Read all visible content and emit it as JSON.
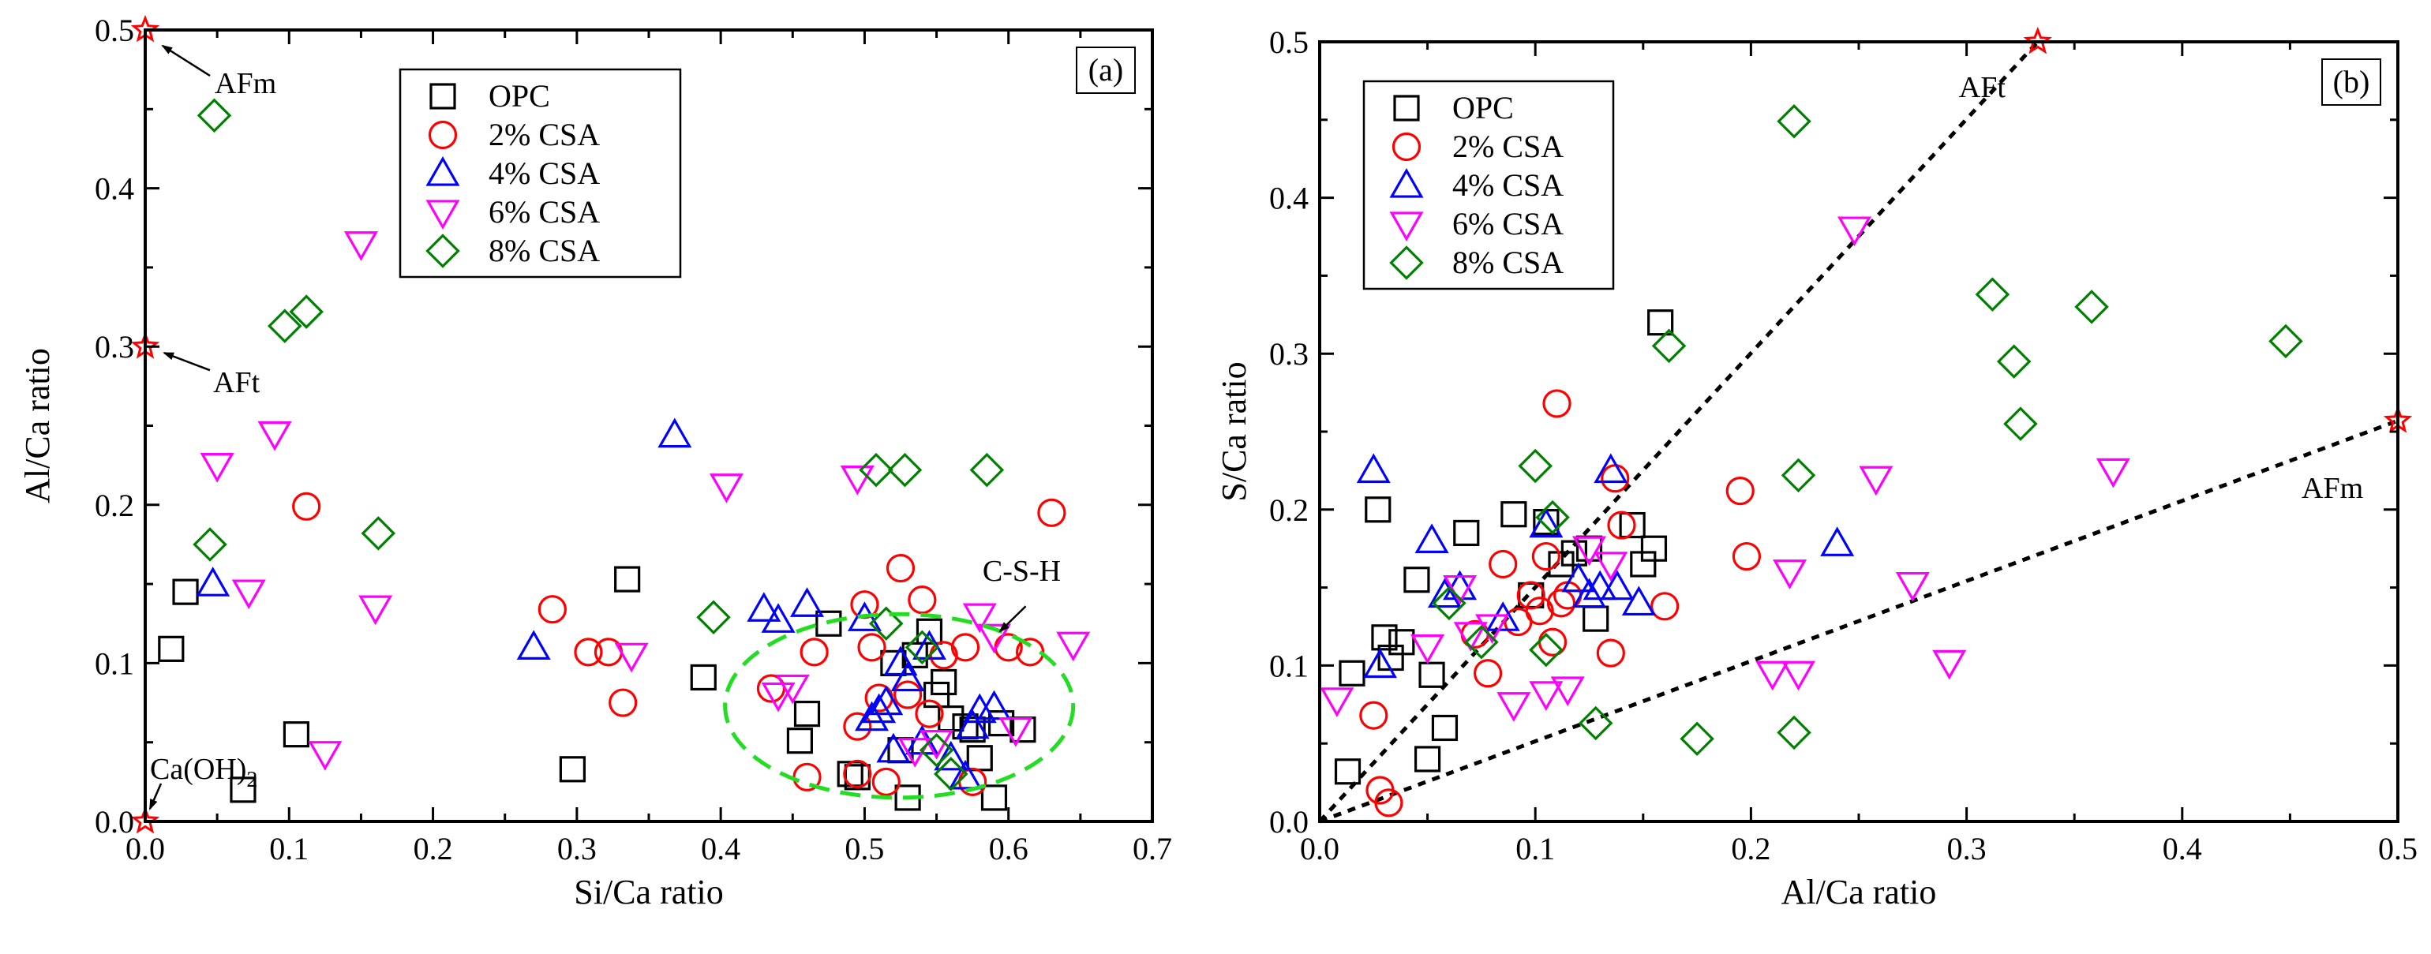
{
  "chart_data": [
    {
      "type": "scatter",
      "panel_label": "(a)",
      "xlabel": "Si/Ca ratio",
      "ylabel": "Al/Ca ratio",
      "xlim": [
        0,
        0.7
      ],
      "ylim": [
        0,
        0.5
      ],
      "xticks": [
        "0.0",
        "0.1",
        "0.2",
        "0.3",
        "0.4",
        "0.5",
        "0.6",
        "0.7"
      ],
      "yticks": [
        "0.0",
        "0.1",
        "0.2",
        "0.3",
        "0.4",
        "0.5"
      ],
      "legend_position": "top-center",
      "series": [
        {
          "name": "OPC",
          "marker": "square",
          "color": "#000000",
          "points": [
            [
              0.018,
              0.109
            ],
            [
              0.028,
              0.145
            ],
            [
              0.068,
              0.02
            ],
            [
              0.105,
              0.055
            ],
            [
              0.297,
              0.033
            ],
            [
              0.335,
              0.153
            ],
            [
              0.388,
              0.091
            ],
            [
              0.455,
              0.051
            ],
            [
              0.46,
              0.068
            ],
            [
              0.475,
              0.125
            ],
            [
              0.49,
              0.03
            ],
            [
              0.495,
              0.028
            ],
            [
              0.52,
              0.1
            ],
            [
              0.525,
              0.045
            ],
            [
              0.53,
              0.015
            ],
            [
              0.535,
              0.105
            ],
            [
              0.545,
              0.12
            ],
            [
              0.55,
              0.08
            ],
            [
              0.555,
              0.088
            ],
            [
              0.56,
              0.065
            ],
            [
              0.57,
              0.06
            ],
            [
              0.575,
              0.058
            ],
            [
              0.58,
              0.04
            ],
            [
              0.59,
              0.015
            ],
            [
              0.595,
              0.062
            ],
            [
              0.61,
              0.058
            ]
          ]
        },
        {
          "name": "2% CSA",
          "marker": "circle",
          "color": "#ff0000",
          "points": [
            [
              0.112,
              0.199
            ],
            [
              0.283,
              0.134
            ],
            [
              0.308,
              0.107
            ],
            [
              0.322,
              0.107
            ],
            [
              0.332,
              0.075
            ],
            [
              0.435,
              0.084
            ],
            [
              0.465,
              0.107
            ],
            [
              0.46,
              0.028
            ],
            [
              0.495,
              0.06
            ],
            [
              0.5,
              0.137
            ],
            [
              0.505,
              0.11
            ],
            [
              0.51,
              0.078
            ],
            [
              0.515,
              0.025
            ],
            [
              0.525,
              0.16
            ],
            [
              0.53,
              0.08
            ],
            [
              0.54,
              0.14
            ],
            [
              0.545,
              0.068
            ],
            [
              0.555,
              0.105
            ],
            [
              0.57,
              0.11
            ],
            [
              0.575,
              0.025
            ],
            [
              0.6,
              0.11
            ],
            [
              0.615,
              0.107
            ],
            [
              0.63,
              0.195
            ],
            [
              0.495,
              0.03
            ]
          ]
        },
        {
          "name": "4% CSA",
          "marker": "triangle-up",
          "color": "#0000ff",
          "points": [
            [
              0.047,
              0.15
            ],
            [
              0.27,
              0.11
            ],
            [
              0.368,
              0.244
            ],
            [
              0.43,
              0.134
            ],
            [
              0.44,
              0.127
            ],
            [
              0.46,
              0.137
            ],
            [
              0.5,
              0.128
            ],
            [
              0.505,
              0.065
            ],
            [
              0.51,
              0.07
            ],
            [
              0.515,
              0.075
            ],
            [
              0.52,
              0.045
            ],
            [
              0.525,
              0.1
            ],
            [
              0.53,
              0.09
            ],
            [
              0.54,
              0.05
            ],
            [
              0.545,
              0.11
            ],
            [
              0.56,
              0.04
            ],
            [
              0.57,
              0.028
            ],
            [
              0.575,
              0.06
            ],
            [
              0.58,
              0.07
            ],
            [
              0.59,
              0.072
            ]
          ]
        },
        {
          "name": "6% CSA",
          "marker": "triangle-down",
          "color": "#ff00ff",
          "points": [
            [
              0.05,
              0.225
            ],
            [
              0.072,
              0.145
            ],
            [
              0.09,
              0.245
            ],
            [
              0.125,
              0.043
            ],
            [
              0.15,
              0.365
            ],
            [
              0.16,
              0.135
            ],
            [
              0.338,
              0.105
            ],
            [
              0.404,
              0.212
            ],
            [
              0.44,
              0.08
            ],
            [
              0.45,
              0.085
            ],
            [
              0.495,
              0.217
            ],
            [
              0.535,
              0.045
            ],
            [
              0.55,
              0.05
            ],
            [
              0.58,
              0.13
            ],
            [
              0.59,
              0.117
            ],
            [
              0.605,
              0.058
            ],
            [
              0.645,
              0.112
            ]
          ]
        },
        {
          "name": "8% CSA",
          "marker": "diamond",
          "color": "#008000",
          "points": [
            [
              0.048,
              0.446
            ],
            [
              0.045,
              0.175
            ],
            [
              0.097,
              0.313
            ],
            [
              0.112,
              0.322
            ],
            [
              0.162,
              0.182
            ],
            [
              0.395,
              0.129
            ],
            [
              0.508,
              0.222
            ],
            [
              0.515,
              0.125
            ],
            [
              0.528,
              0.222
            ],
            [
              0.54,
              0.11
            ],
            [
              0.55,
              0.045
            ],
            [
              0.56,
              0.03
            ],
            [
              0.585,
              0.222
            ]
          ]
        }
      ],
      "reference_points": [
        {
          "label": "AFm",
          "x": 0.0,
          "y": 0.5
        },
        {
          "label": "AFt",
          "x": 0.0,
          "y": 0.3
        },
        {
          "label": "Ca(OH)2",
          "x": 0.0,
          "y": 0.0
        }
      ],
      "annotations": [
        {
          "text": "AFm",
          "target": "AFm"
        },
        {
          "text": "AFt",
          "target": "AFt"
        },
        {
          "text": "Ca(OH)",
          "subscript": "2",
          "target": "Ca(OH)2"
        },
        {
          "text": "C-S-H",
          "target": "ellipse"
        }
      ],
      "ellipse": {
        "cx": 0.524,
        "cy": 0.073,
        "rx": 0.121,
        "ry": 0.058,
        "color": "#22dd22"
      }
    },
    {
      "type": "scatter",
      "panel_label": "(b)",
      "xlabel": "Al/Ca ratio",
      "ylabel": "S/Ca ratio",
      "xlim": [
        0,
        0.5
      ],
      "ylim": [
        0,
        0.5
      ],
      "xticks": [
        "0.0",
        "0.1",
        "0.2",
        "0.3",
        "0.4",
        "0.5"
      ],
      "yticks": [
        "0.0",
        "0.1",
        "0.2",
        "0.3",
        "0.4",
        "0.5"
      ],
      "legend_position": "top-left",
      "series": [
        {
          "name": "OPC",
          "marker": "square",
          "color": "#000000",
          "points": [
            [
              0.013,
              0.032
            ],
            [
              0.015,
              0.095
            ],
            [
              0.027,
              0.2
            ],
            [
              0.03,
              0.118
            ],
            [
              0.033,
              0.105
            ],
            [
              0.038,
              0.115
            ],
            [
              0.045,
              0.155
            ],
            [
              0.05,
              0.04
            ],
            [
              0.052,
              0.094
            ],
            [
              0.058,
              0.06
            ],
            [
              0.068,
              0.185
            ],
            [
              0.09,
              0.197
            ],
            [
              0.098,
              0.145
            ],
            [
              0.105,
              0.192
            ],
            [
              0.112,
              0.165
            ],
            [
              0.118,
              0.172
            ],
            [
              0.125,
              0.175
            ],
            [
              0.128,
              0.13
            ],
            [
              0.145,
              0.19
            ],
            [
              0.15,
              0.165
            ],
            [
              0.155,
              0.175
            ],
            [
              0.158,
              0.32
            ]
          ]
        },
        {
          "name": "2% CSA",
          "marker": "circle",
          "color": "#ff0000",
          "points": [
            [
              0.025,
              0.068
            ],
            [
              0.028,
              0.02
            ],
            [
              0.032,
              0.012
            ],
            [
              0.072,
              0.12
            ],
            [
              0.078,
              0.095
            ],
            [
              0.085,
              0.165
            ],
            [
              0.092,
              0.128
            ],
            [
              0.098,
              0.145
            ],
            [
              0.102,
              0.135
            ],
            [
              0.105,
              0.17
            ],
            [
              0.108,
              0.115
            ],
            [
              0.11,
              0.268
            ],
            [
              0.112,
              0.14
            ],
            [
              0.115,
              0.145
            ],
            [
              0.135,
              0.108
            ],
            [
              0.137,
              0.22
            ],
            [
              0.14,
              0.19
            ],
            [
              0.16,
              0.138
            ],
            [
              0.195,
              0.212
            ],
            [
              0.198,
              0.17
            ]
          ]
        },
        {
          "name": "4% CSA",
          "marker": "triangle-up",
          "color": "#0000ff",
          "points": [
            [
              0.025,
              0.225
            ],
            [
              0.028,
              0.1
            ],
            [
              0.052,
              0.18
            ],
            [
              0.058,
              0.145
            ],
            [
              0.065,
              0.15
            ],
            [
              0.085,
              0.13
            ],
            [
              0.105,
              0.19
            ],
            [
              0.12,
              0.155
            ],
            [
              0.125,
              0.145
            ],
            [
              0.13,
              0.15
            ],
            [
              0.135,
              0.225
            ],
            [
              0.138,
              0.15
            ],
            [
              0.148,
              0.14
            ],
            [
              0.24,
              0.178
            ]
          ]
        },
        {
          "name": "6% CSA",
          "marker": "triangle-down",
          "color": "#ff00ff",
          "points": [
            [
              0.008,
              0.078
            ],
            [
              0.05,
              0.112
            ],
            [
              0.065,
              0.15
            ],
            [
              0.07,
              0.12
            ],
            [
              0.08,
              0.125
            ],
            [
              0.09,
              0.075
            ],
            [
              0.105,
              0.082
            ],
            [
              0.115,
              0.085
            ],
            [
              0.125,
              0.175
            ],
            [
              0.135,
              0.165
            ],
            [
              0.21,
              0.095
            ],
            [
              0.218,
              0.16
            ],
            [
              0.222,
              0.095
            ],
            [
              0.248,
              0.38
            ],
            [
              0.258,
              0.22
            ],
            [
              0.275,
              0.152
            ],
            [
              0.292,
              0.102
            ],
            [
              0.368,
              0.225
            ]
          ]
        },
        {
          "name": "8% CSA",
          "marker": "diamond",
          "color": "#008000",
          "points": [
            [
              0.06,
              0.14
            ],
            [
              0.075,
              0.115
            ],
            [
              0.1,
              0.228
            ],
            [
              0.105,
              0.11
            ],
            [
              0.108,
              0.195
            ],
            [
              0.128,
              0.063
            ],
            [
              0.162,
              0.305
            ],
            [
              0.175,
              0.053
            ],
            [
              0.22,
              0.449
            ],
            [
              0.222,
              0.222
            ],
            [
              0.22,
              0.057
            ],
            [
              0.312,
              0.338
            ],
            [
              0.322,
              0.295
            ],
            [
              0.325,
              0.255
            ],
            [
              0.358,
              0.33
            ],
            [
              0.448,
              0.308
            ]
          ]
        }
      ],
      "reference_points": [
        {
          "label": "AFt",
          "x": 0.333,
          "y": 0.5
        },
        {
          "label": "AFm",
          "x": 0.5,
          "y": 0.257
        }
      ],
      "reference_lines": [
        {
          "from": [
            0,
            0
          ],
          "to": [
            0.333,
            0.5
          ],
          "style": "dashed"
        },
        {
          "from": [
            0,
            0
          ],
          "to": [
            0.5,
            0.257
          ],
          "style": "dashed"
        }
      ],
      "annotations": [
        {
          "text": "AFt",
          "target": "AFt-line"
        },
        {
          "text": "AFm",
          "target": "AFm-line"
        }
      ]
    }
  ]
}
